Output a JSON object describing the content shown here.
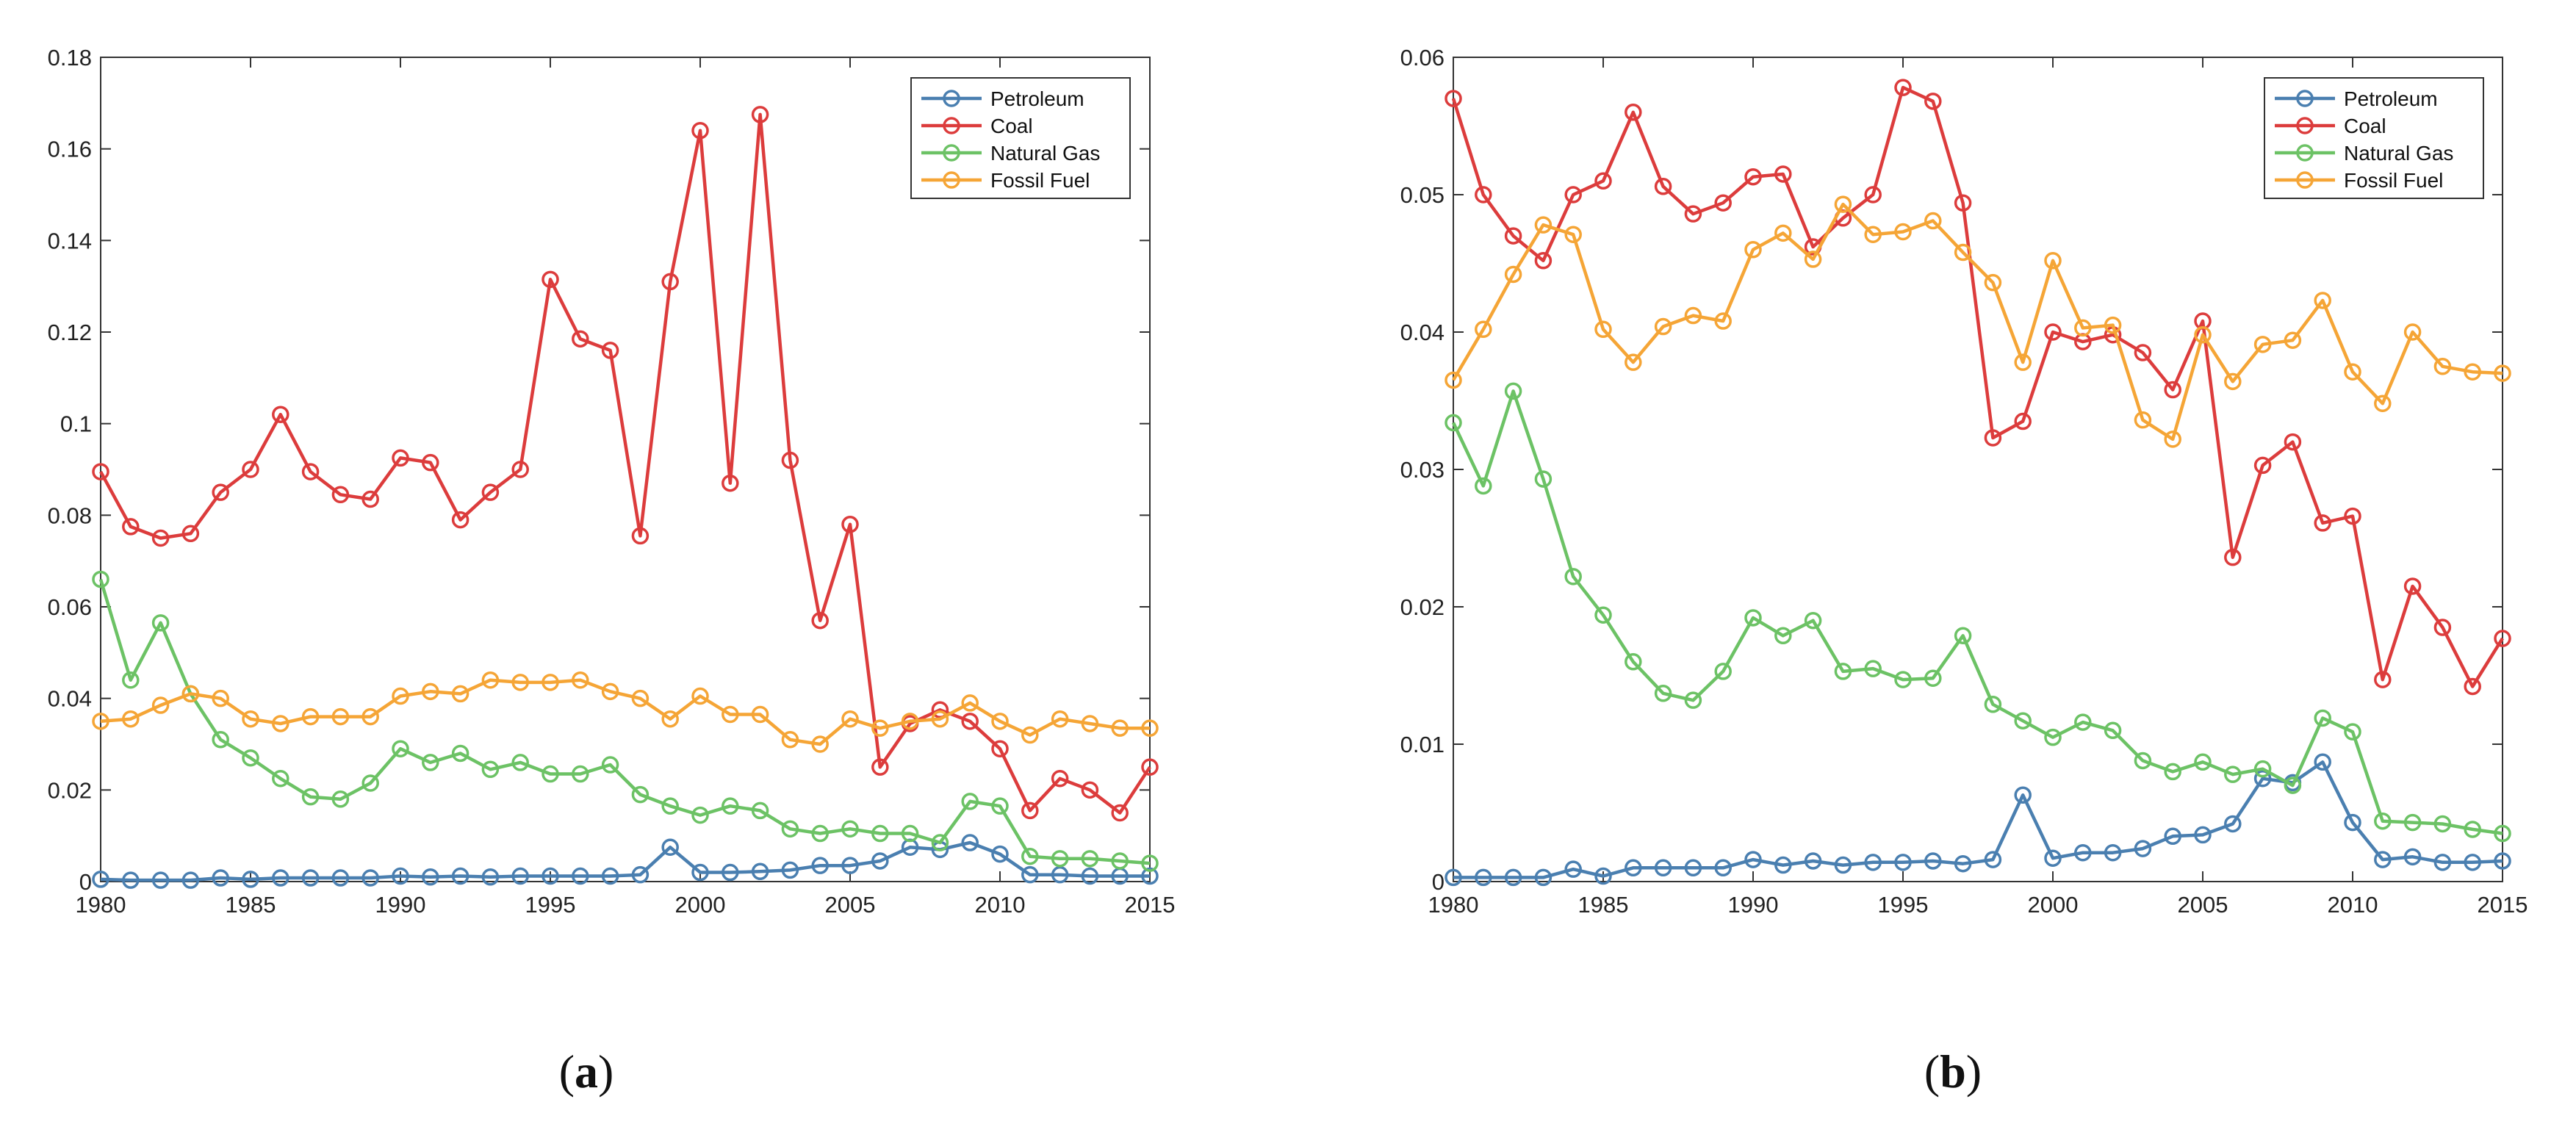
{
  "colors": {
    "Petroleum": "#4a7fb0",
    "Coal": "#dc3c3c",
    "Natural Gas": "#6cc265",
    "Fossil Fuel": "#f5a536",
    "axis": "#333333"
  },
  "chart_data": [
    {
      "type": "line",
      "panel_label": {
        "open": "(",
        "letter": "a",
        "close": ")"
      },
      "x": [
        1980,
        1981,
        1982,
        1983,
        1984,
        1985,
        1986,
        1987,
        1988,
        1989,
        1990,
        1991,
        1992,
        1993,
        1994,
        1995,
        1996,
        1997,
        1998,
        1999,
        2000,
        2001,
        2002,
        2003,
        2004,
        2005,
        2006,
        2007,
        2008,
        2009,
        2010,
        2011,
        2012,
        2013,
        2014,
        2015
      ],
      "xlim": [
        1980,
        2015
      ],
      "ylim": [
        0,
        0.18
      ],
      "xticks": [
        "1980",
        "1985",
        "1990",
        "1995",
        "2000",
        "2005",
        "2010",
        "2015"
      ],
      "yticks": [
        "0",
        "0.02",
        "0.04",
        "0.06",
        "0.08",
        "0.1",
        "0.12",
        "0.14",
        "0.16",
        "0.18"
      ],
      "legend": [
        "Petroleum",
        "Coal",
        "Natural Gas",
        "Fossil Fuel"
      ],
      "series": [
        {
          "name": "Petroleum",
          "values": [
            0.0005,
            0.0003,
            0.0003,
            0.0003,
            0.0008,
            0.0005,
            0.0008,
            0.0008,
            0.0008,
            0.0008,
            0.0012,
            0.001,
            0.0012,
            0.001,
            0.0012,
            0.0012,
            0.0012,
            0.0012,
            0.0015,
            0.0075,
            0.002,
            0.002,
            0.0022,
            0.0025,
            0.0035,
            0.0035,
            0.0045,
            0.0075,
            0.007,
            0.0085,
            0.006,
            0.0015,
            0.0015,
            0.0012,
            0.0012,
            0.0012
          ]
        },
        {
          "name": "Coal",
          "values": [
            0.0895,
            0.0775,
            0.075,
            0.076,
            0.085,
            0.09,
            0.102,
            0.0895,
            0.0845,
            0.0835,
            0.0925,
            0.0915,
            0.079,
            0.085,
            0.09,
            0.1315,
            0.1185,
            0.116,
            0.0755,
            0.131,
            0.164,
            0.087,
            0.1675,
            0.092,
            0.057,
            0.078,
            0.025,
            0.0345,
            0.0375,
            0.035,
            0.029,
            0.0155,
            0.0225,
            0.02,
            0.015,
            0.025
          ]
        },
        {
          "name": "Natural Gas",
          "values": [
            0.066,
            0.044,
            0.0565,
            0.041,
            0.031,
            0.027,
            0.0225,
            0.0185,
            0.018,
            0.0215,
            0.029,
            0.026,
            0.028,
            0.0245,
            0.026,
            0.0235,
            0.0235,
            0.0255,
            0.019,
            0.0165,
            0.0145,
            0.0165,
            0.0155,
            0.0115,
            0.0105,
            0.0115,
            0.0105,
            0.0105,
            0.0085,
            0.0175,
            0.0165,
            0.0055,
            0.005,
            0.005,
            0.0045,
            0.004
          ]
        },
        {
          "name": "Fossil Fuel",
          "values": [
            0.035,
            0.0355,
            0.0385,
            0.041,
            0.04,
            0.0355,
            0.0345,
            0.036,
            0.036,
            0.036,
            0.0405,
            0.0415,
            0.041,
            0.044,
            0.0435,
            0.0435,
            0.044,
            0.0415,
            0.04,
            0.0355,
            0.0405,
            0.0365,
            0.0365,
            0.031,
            0.03,
            0.0355,
            0.0335,
            0.035,
            0.0355,
            0.039,
            0.035,
            0.032,
            0.0355,
            0.0345,
            0.0335,
            0.0335
          ]
        }
      ]
    },
    {
      "type": "line",
      "panel_label": {
        "open": "(",
        "letter": "b",
        "close": ")"
      },
      "x": [
        1980,
        1981,
        1982,
        1983,
        1984,
        1985,
        1986,
        1987,
        1988,
        1989,
        1990,
        1991,
        1992,
        1993,
        1994,
        1995,
        1996,
        1997,
        1998,
        1999,
        2000,
        2001,
        2002,
        2003,
        2004,
        2005,
        2006,
        2007,
        2008,
        2009,
        2010,
        2011,
        2012,
        2013,
        2014,
        2015
      ],
      "xlim": [
        1980,
        2015
      ],
      "ylim": [
        0,
        0.06
      ],
      "xticks": [
        "1980",
        "1985",
        "1990",
        "1995",
        "2000",
        "2005",
        "2010",
        "2015"
      ],
      "yticks": [
        "0",
        "0.01",
        "0.02",
        "0.03",
        "0.04",
        "0.05",
        "0.06"
      ],
      "legend": [
        "Petroleum",
        "Coal",
        "Natural Gas",
        "Fossil Fuel"
      ],
      "series": [
        {
          "name": "Petroleum",
          "values": [
            0.0003,
            0.0003,
            0.0003,
            0.0003,
            0.0009,
            0.0004,
            0.001,
            0.001,
            0.001,
            0.001,
            0.0016,
            0.0012,
            0.0015,
            0.0012,
            0.0014,
            0.0014,
            0.0015,
            0.0013,
            0.0016,
            0.0063,
            0.0017,
            0.0021,
            0.0021,
            0.0024,
            0.0033,
            0.0034,
            0.0042,
            0.0075,
            0.0072,
            0.0087,
            0.0043,
            0.0016,
            0.0018,
            0.0014,
            0.0014,
            0.0015
          ]
        },
        {
          "name": "Coal",
          "values": [
            0.057,
            0.05,
            0.047,
            0.0452,
            0.05,
            0.051,
            0.056,
            0.0506,
            0.0486,
            0.0494,
            0.0513,
            0.0515,
            0.0462,
            0.0483,
            0.05,
            0.0578,
            0.0568,
            0.0494,
            0.0323,
            0.0335,
            0.04,
            0.0393,
            0.0398,
            0.0385,
            0.0358,
            0.0408,
            0.0236,
            0.0303,
            0.032,
            0.0261,
            0.0266,
            0.0147,
            0.0215,
            0.0185,
            0.0142,
            0.0177
          ]
        },
        {
          "name": "Natural Gas",
          "values": [
            0.0334,
            0.0288,
            0.0357,
            0.0293,
            0.0222,
            0.0194,
            0.016,
            0.0137,
            0.0132,
            0.0153,
            0.0192,
            0.0179,
            0.019,
            0.0153,
            0.0155,
            0.0147,
            0.0148,
            0.0179,
            0.0129,
            0.0117,
            0.0105,
            0.0116,
            0.011,
            0.0088,
            0.008,
            0.0087,
            0.0078,
            0.0082,
            0.007,
            0.0119,
            0.0109,
            0.0044,
            0.0043,
            0.0042,
            0.0038,
            0.0035
          ]
        },
        {
          "name": "Fossil Fuel",
          "values": [
            0.0365,
            0.0402,
            0.0442,
            0.0478,
            0.0471,
            0.0402,
            0.0378,
            0.0404,
            0.0412,
            0.0408,
            0.046,
            0.0472,
            0.0453,
            0.0493,
            0.0471,
            0.0473,
            0.0481,
            0.0458,
            0.0436,
            0.0378,
            0.0452,
            0.0403,
            0.0405,
            0.0336,
            0.0322,
            0.0398,
            0.0364,
            0.0391,
            0.0394,
            0.0423,
            0.0371,
            0.0348,
            0.04,
            0.0375,
            0.0371,
            0.037
          ]
        }
      ]
    }
  ]
}
